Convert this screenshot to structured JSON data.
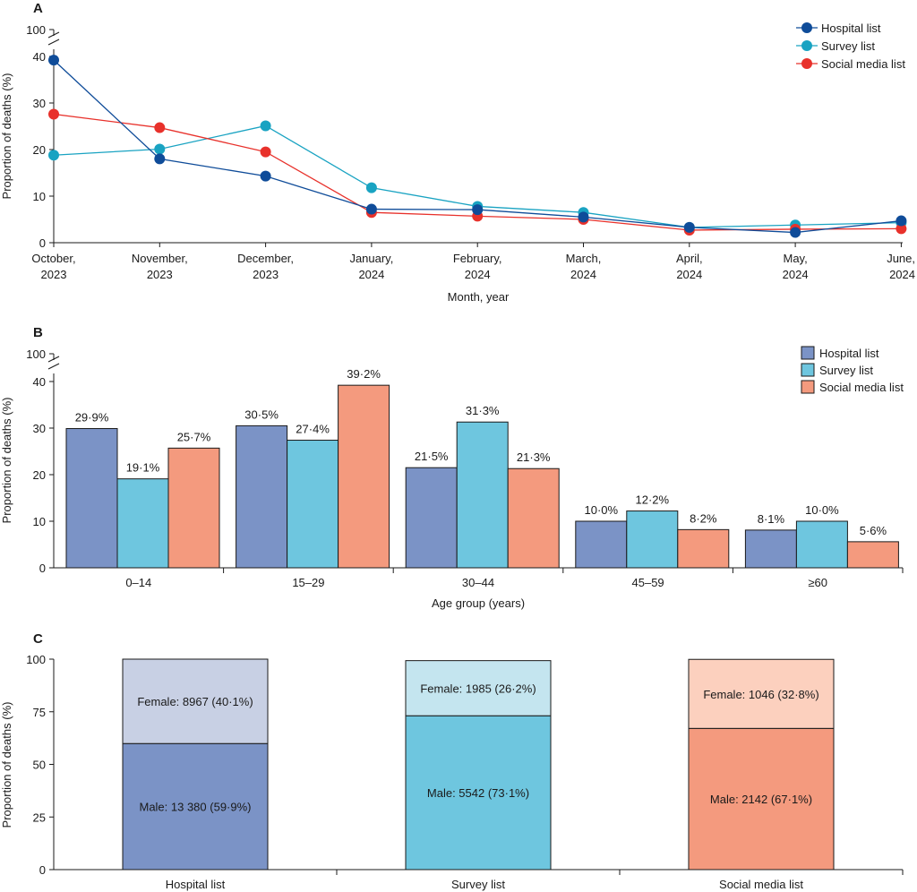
{
  "colors": {
    "hospital": "#0f4c99",
    "survey": "#19a3c2",
    "social": "#e8312b",
    "hospital_bar": "#7b93c6",
    "survey_bar": "#6ec6df",
    "social_bar": "#f49a7e",
    "hospital_light": "#c8d0e4",
    "survey_light": "#c4e5ef",
    "social_light": "#fcd0be"
  },
  "chart_data": [
    {
      "panel": "A",
      "type": "line",
      "xlabel": "Month, year",
      "ylabel": "Proportion of deaths (%)",
      "y_ticks": [
        "0",
        "10",
        "20",
        "30",
        "40",
        "100"
      ],
      "ylim": [
        0,
        45
      ],
      "axis_break": true,
      "categories": [
        [
          "October,",
          "2023"
        ],
        [
          "November,",
          "2023"
        ],
        [
          "December,",
          "2023"
        ],
        [
          "January,",
          "2024"
        ],
        [
          "February,",
          "2024"
        ],
        [
          "March,",
          "2024"
        ],
        [
          "April,",
          "2024"
        ],
        [
          "May,",
          "2024"
        ],
        [
          "June,",
          "2024"
        ]
      ],
      "series": [
        {
          "key": "hospital",
          "name": "Hospital list",
          "values": [
            39.2,
            18.0,
            14.3,
            7.2,
            7.1,
            5.5,
            3.3,
            2.2,
            4.7
          ]
        },
        {
          "key": "survey",
          "name": "Survey list",
          "values": [
            18.8,
            20.1,
            25.1,
            11.8,
            7.8,
            6.5,
            3.3,
            3.8,
            4.3
          ]
        },
        {
          "key": "social",
          "name": "Social media list",
          "values": [
            27.6,
            24.7,
            19.5,
            6.5,
            5.7,
            5.0,
            2.7,
            2.9,
            3.0
          ]
        }
      ]
    },
    {
      "panel": "B",
      "type": "bar",
      "xlabel": "Age group (years)",
      "ylabel": "Proportion of deaths (%)",
      "y_ticks": [
        "0",
        "10",
        "20",
        "30",
        "40",
        "100"
      ],
      "ylim": [
        0,
        45
      ],
      "axis_break": true,
      "categories": [
        "0–14",
        "15–29",
        "30–44",
        "45–59",
        "≥60"
      ],
      "series": [
        {
          "key": "hospital",
          "name": "Hospital list",
          "values": [
            29.9,
            30.5,
            21.5,
            10.0,
            8.1
          ],
          "labels": [
            "29·9%",
            "30·5%",
            "21·5%",
            "10·0%",
            "8·1%"
          ]
        },
        {
          "key": "survey",
          "name": "Survey list",
          "values": [
            19.1,
            27.4,
            31.3,
            12.2,
            10.0
          ],
          "labels": [
            "19·1%",
            "27·4%",
            "31·3%",
            "12·2%",
            "10·0%"
          ]
        },
        {
          "key": "social",
          "name": "Social media list",
          "values": [
            25.7,
            39.2,
            21.3,
            8.2,
            5.6
          ],
          "labels": [
            "25·7%",
            "39·2%",
            "21·3%",
            "8·2%",
            "5·6%"
          ]
        }
      ]
    },
    {
      "panel": "C",
      "type": "bar",
      "stacked": true,
      "xlabel": "",
      "ylabel": "Proportion of deaths (%)",
      "y_ticks": [
        "0",
        "25",
        "50",
        "75",
        "100"
      ],
      "ylim": [
        0,
        100
      ],
      "categories": [
        "Hospital list",
        "Survey list",
        "Social media list"
      ],
      "series": [
        {
          "key": "male",
          "name": "Male",
          "values": [
            59.9,
            73.1,
            67.1
          ],
          "labels": [
            "Male: 13 380 (59·9%)",
            "Male: 5542 (73·1%)",
            "Male: 2142 (67·1%)"
          ]
        },
        {
          "key": "female",
          "name": "Female",
          "values": [
            40.1,
            26.2,
            32.8
          ],
          "labels": [
            "Female: 8967 (40·1%)",
            "Female: 1985 (26·2%)",
            "Female: 1046 (32·8%)"
          ]
        }
      ]
    }
  ]
}
